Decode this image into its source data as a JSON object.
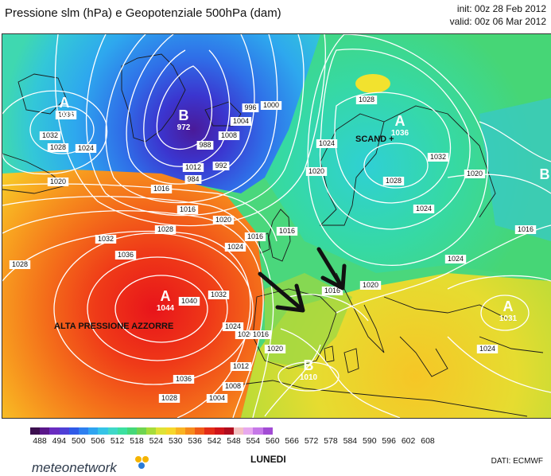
{
  "header": {
    "title": "Pressione slm (hPa) e Geopotenziale 500hPa (dam)",
    "init": "init: 00z 28 Feb 2012",
    "valid": "valid: 00z 06 Mar 2012"
  },
  "map": {
    "pressure_centers": [
      {
        "type": "A",
        "value": "1031"
      },
      {
        "type": "B",
        "value": "972"
      },
      {
        "type": "A",
        "value": "1036"
      },
      {
        "type": "B",
        "value": ""
      },
      {
        "type": "A",
        "value": "1044"
      },
      {
        "type": "B",
        "value": "1010"
      },
      {
        "type": "A",
        "value": "1031"
      }
    ],
    "annotations": [
      "ALTA PRESSIONE AZZORRE",
      "SCAND +"
    ],
    "isobar_labels": [
      "1036",
      "1032",
      "1028",
      "1024",
      "1020",
      "1016",
      "1012",
      "1008",
      "1004",
      "1000",
      "996",
      "992",
      "988",
      "984",
      "1016",
      "1016",
      "1020",
      "1024",
      "1028",
      "1032",
      "1036",
      "1040",
      "1028",
      "1032",
      "1024",
      "1020",
      "1016",
      "1012",
      "1008",
      "1004",
      "1028",
      "1024",
      "1020",
      "1016",
      "1028",
      "1032",
      "1024",
      "1020",
      "1016",
      "1024",
      "1020",
      "1016",
      "1036",
      "1028",
      "1024",
      "1020"
    ],
    "arrow_color": "#111111"
  },
  "legend": {
    "ticks": [
      "488",
      "494",
      "500",
      "506",
      "512",
      "518",
      "524",
      "530",
      "536",
      "542",
      "548",
      "554",
      "560",
      "566",
      "572",
      "578",
      "584",
      "590",
      "596",
      "602",
      "608"
    ],
    "colors": [
      "#3c0f4f",
      "#5a178a",
      "#6a2cc0",
      "#4f3fd6",
      "#2f5ae8",
      "#2d7ff0",
      "#2ea4f0",
      "#35c4e6",
      "#3fd8c8",
      "#3ce0a0",
      "#45d878",
      "#6fd450",
      "#a7dc3a",
      "#dfe236",
      "#f6d72b",
      "#f9b322",
      "#f68a1c",
      "#f05a18",
      "#e32c17",
      "#d0141a",
      "#b00c1e",
      "#f2c2c2",
      "#e7a8ee",
      "#c678e8",
      "#a24bd4"
    ],
    "day": "LUNEDI",
    "brand": "meteonetwork",
    "brand_dots": [
      "#f5b400",
      "#f5b400",
      "#2a7ad6"
    ],
    "source": "DATI:  ECMWF"
  }
}
